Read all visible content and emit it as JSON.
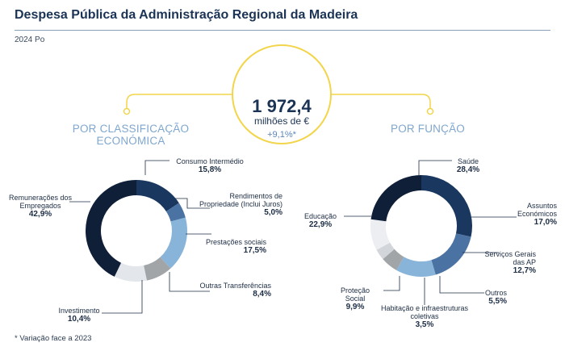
{
  "header": {
    "title": "Despesa Pública da Administração Regional da Madeira",
    "subtitle": "2024 Po"
  },
  "center": {
    "total": "1 972,4",
    "unit": "milhões de €",
    "change": "+9,1%*",
    "icon": "government-building-icon"
  },
  "sections": {
    "left": "POR CLASSIFICAÇÃO ECONÓMICA",
    "right": "POR FUNÇÃO"
  },
  "footnote": "* Variação face a 2023",
  "colors": {
    "accent_yellow": "#f2d54a",
    "section_blue": "#7fa7cf",
    "title_navy": "#1b3354"
  },
  "chart_data": [
    {
      "type": "pie",
      "donut": true,
      "title": "POR CLASSIFICAÇÃO ECONÓMICA",
      "categories": [
        "Consumo Intermédio",
        "Rendimentos de Propriedade (Inclui Juros)",
        "Prestações sociais",
        "Outras Transferências",
        "Investimento",
        "Remunerações dos Empregados"
      ],
      "values": [
        15.8,
        5.0,
        17.5,
        8.4,
        10.4,
        42.9
      ],
      "value_labels": [
        "15,8%",
        "5,0%",
        "17,5%",
        "8,4%",
        "10,4%",
        "42,9%"
      ],
      "colors": [
        "#19375f",
        "#4a73a3",
        "#88b4da",
        "#a2a5a8",
        "#e3e6ea",
        "#0f1f38"
      ]
    },
    {
      "type": "pie",
      "donut": true,
      "title": "POR FUNÇÃO",
      "categories": [
        "Saúde",
        "Assuntos Económicos",
        "Serviços Gerais das AP",
        "Outros",
        "Habitação e infraestruturas coletivas",
        "Proteção Social",
        "Educação"
      ],
      "values": [
        28.4,
        17.0,
        12.7,
        5.5,
        3.5,
        9.9,
        22.9
      ],
      "value_labels": [
        "28,4%",
        "17,0%",
        "12,7%",
        "5,5%",
        "3,5%",
        "9,9%",
        "22,9%"
      ],
      "colors": [
        "#19375f",
        "#4a73a3",
        "#88b4da",
        "#a2a5a8",
        "#d2d5d9",
        "#eceef1",
        "#0f1f38"
      ]
    }
  ]
}
